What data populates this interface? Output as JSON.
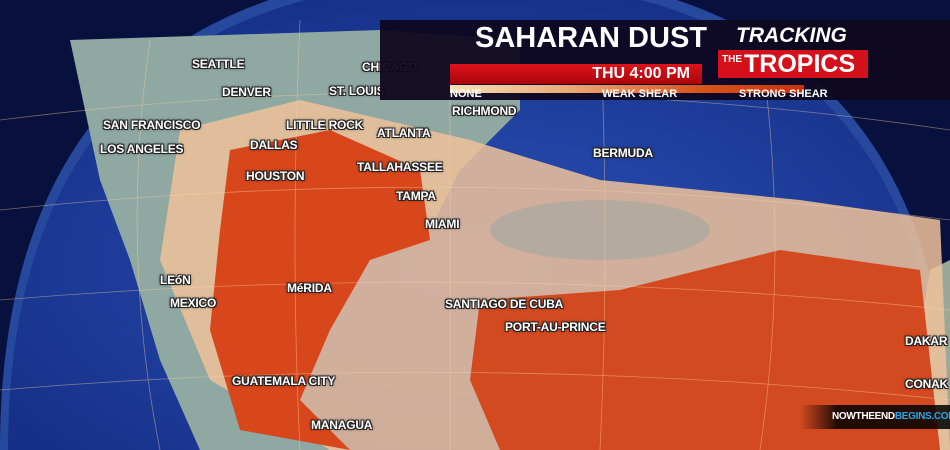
{
  "header": {
    "title": "SAHARAN DUST",
    "time": "THU 4:00 PM",
    "scale": {
      "none": "NONE",
      "weak": "WEAK SHEAR",
      "strong": "STRONG SHEAR"
    },
    "logo": {
      "line1": "TRACKING",
      "the": "THE",
      "tropics": "TROPICS"
    }
  },
  "cities": [
    "SEATTLE",
    "CHICAGO",
    "DENVER",
    "ST. LOUIS",
    "RICHMOND",
    "SAN FRANCISCO",
    "LITTLE ROCK",
    "ATLANTA",
    "LOS ANGELES",
    "DALLAS",
    "TALLAHASSEE",
    "BERMUDA",
    "HOUSTON",
    "TAMPA",
    "MIAMI",
    "LEóN",
    "MEXICO",
    "MéRIDA",
    "SANTIAGO DE CUBA",
    "PORT-AU-PRINCE",
    "DAKAR",
    "CONAK",
    "GUATEMALA CITY",
    "MANAGUA"
  ],
  "watermark": {
    "part1": "NOWTHEEND",
    "part2": "BEGINS.COM"
  },
  "colors": {
    "ocean": "#1a3a9a",
    "land": "#8fa8a2",
    "dust_light": "#f0c89a",
    "dust_heavy": "#d8401a",
    "banner_red": "#d4101a"
  }
}
